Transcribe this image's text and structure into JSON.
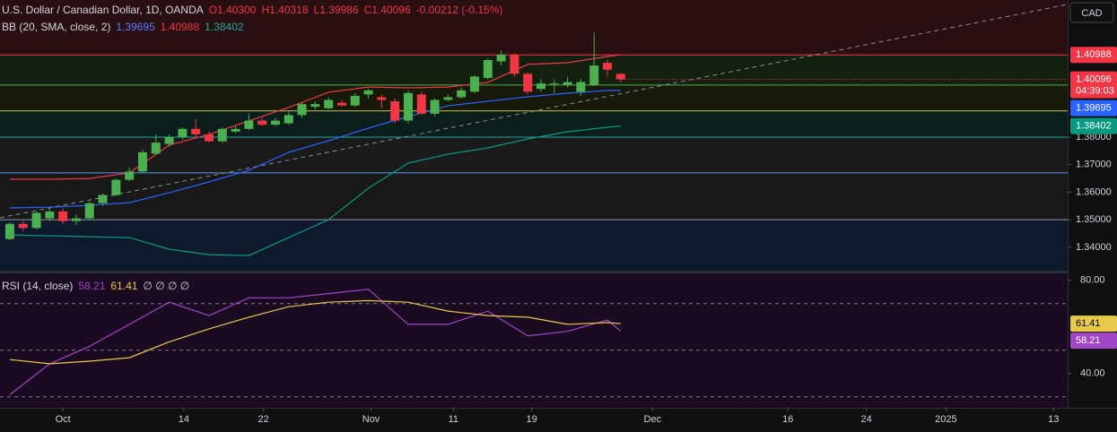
{
  "header": {
    "title": "U.S. Dollar / Canadian Dollar, 1D, OANDA",
    "ohlc": [
      "O1.40300",
      "H1.40318",
      "L1.39986",
      "C1.40096"
    ],
    "change": "-0.00212 (-0.15%)"
  },
  "currency": "CAD",
  "countdown": "04:39:03",
  "chart_data": [
    {
      "type": "candlestick",
      "x": [
        0,
        1,
        2,
        3,
        4,
        5,
        6,
        7,
        8,
        9,
        10,
        11,
        12,
        13,
        14,
        15,
        16,
        17,
        18,
        19,
        20,
        21,
        22,
        23,
        24,
        25,
        26,
        27,
        28,
        29,
        30,
        31,
        32,
        33,
        34,
        35,
        36,
        37,
        38,
        39,
        40,
        41,
        42,
        43,
        44,
        45,
        46
      ],
      "open": [
        1.343,
        1.3485,
        1.347,
        1.3505,
        1.353,
        1.3495,
        1.3505,
        1.356,
        1.359,
        1.3645,
        1.3675,
        1.374,
        1.3775,
        1.38,
        1.383,
        1.381,
        1.3785,
        1.382,
        1.383,
        1.386,
        1.3845,
        1.385,
        1.388,
        1.391,
        1.3905,
        1.3925,
        1.3915,
        1.3955,
        1.3945,
        1.393,
        1.386,
        1.3955,
        1.3885,
        1.3935,
        1.3945,
        1.3965,
        1.4015,
        1.4075,
        1.41,
        1.403,
        1.3975,
        1.3995,
        1.399,
        1.3965,
        1.399,
        1.407,
        1.403
      ],
      "high": [
        1.349,
        1.3495,
        1.353,
        1.3545,
        1.354,
        1.352,
        1.3565,
        1.3595,
        1.365,
        1.369,
        1.3755,
        1.381,
        1.381,
        1.3835,
        1.3865,
        1.382,
        1.3835,
        1.384,
        1.3885,
        1.387,
        1.387,
        1.389,
        1.3925,
        1.393,
        1.3945,
        1.3935,
        1.396,
        1.3975,
        1.3955,
        1.394,
        1.397,
        1.3965,
        1.394,
        1.3955,
        1.398,
        1.4025,
        1.4085,
        1.4115,
        1.4105,
        1.4035,
        1.401,
        1.401,
        1.402,
        1.401,
        1.418,
        1.408,
        1.40318
      ],
      "low": [
        1.3425,
        1.346,
        1.3465,
        1.3495,
        1.3485,
        1.348,
        1.35,
        1.355,
        1.3585,
        1.364,
        1.367,
        1.3735,
        1.3765,
        1.379,
        1.38,
        1.378,
        1.378,
        1.3815,
        1.3825,
        1.384,
        1.384,
        1.3845,
        1.387,
        1.39,
        1.39,
        1.391,
        1.391,
        1.394,
        1.3905,
        1.385,
        1.385,
        1.388,
        1.3875,
        1.393,
        1.394,
        1.396,
        1.401,
        1.406,
        1.402,
        1.3955,
        1.3965,
        1.396,
        1.398,
        1.395,
        1.3985,
        1.402,
        1.39986
      ],
      "close": [
        1.3485,
        1.347,
        1.3525,
        1.353,
        1.3495,
        1.3505,
        1.356,
        1.359,
        1.3645,
        1.3675,
        1.3745,
        1.378,
        1.38,
        1.383,
        1.381,
        1.3785,
        1.383,
        1.383,
        1.386,
        1.3845,
        1.386,
        1.388,
        1.392,
        1.392,
        1.3935,
        1.3915,
        1.395,
        1.397,
        1.3935,
        1.386,
        1.396,
        1.3885,
        1.3935,
        1.3945,
        1.397,
        1.402,
        1.408,
        1.41,
        1.403,
        1.3965,
        1.3995,
        1.3995,
        1.4,
        1.4,
        1.406,
        1.4045,
        1.40096
      ],
      "up_color": "#4caf50",
      "down_color": "#f23645",
      "xlim": [
        -0.74,
        79.66
      ],
      "xticks": [
        {
          "value": 4,
          "label": "Oct"
        },
        {
          "value": 13.1,
          "label": "14"
        },
        {
          "value": 19.1,
          "label": "22"
        },
        {
          "value": 27.2,
          "label": "Nov"
        },
        {
          "value": 33.4,
          "label": "11"
        },
        {
          "value": 39.3,
          "label": "19"
        },
        {
          "value": 48.4,
          "label": "Dec"
        },
        {
          "value": 58.6,
          "label": "16"
        },
        {
          "value": 64.5,
          "label": "24"
        },
        {
          "value": 70.5,
          "label": "2025"
        },
        {
          "value": 78.6,
          "label": "13"
        }
      ],
      "ylim": [
        1.3315,
        1.4298
      ],
      "yticks": [
        {
          "value": 1.34,
          "label": "1.34000"
        },
        {
          "value": 1.35,
          "label": "1.35000"
        },
        {
          "value": 1.36,
          "label": "1.36000"
        },
        {
          "value": 1.37,
          "label": "1.37000"
        },
        {
          "value": 1.38,
          "label": "1.38000"
        }
      ],
      "bollinger": {
        "label": "BB (20, SMA, close, 2)",
        "x": [
          0,
          3,
          6,
          9,
          12,
          15,
          18,
          21,
          24,
          27,
          30,
          33,
          36,
          39,
          42,
          45,
          46
        ],
        "series": [
          {
            "color": "#2962ff",
            "values": [
              1.35427,
              1.35459,
              1.35524,
              1.35622,
              1.3598,
              1.36371,
              1.36795,
              1.37446,
              1.3787,
              1.38326,
              1.38749,
              1.3914,
              1.39303,
              1.39466,
              1.39596,
              1.39694,
              1.39695
            ]
          },
          {
            "color": "#f23645",
            "values": [
              1.3647,
              1.3647,
              1.365,
              1.367,
              1.3771,
              1.381,
              1.3859,
              1.3908,
              1.3963,
              1.3982,
              1.3979,
              1.3982,
              1.3999,
              1.4064,
              1.407,
              1.4093,
              1.40988
            ]
          },
          {
            "color": "#089981",
            "values": [
              1.34449,
              1.34417,
              1.34384,
              1.34352,
              1.33928,
              1.33733,
              1.337,
              1.34352,
              1.35003,
              1.36143,
              1.37055,
              1.37381,
              1.37609,
              1.37935,
              1.38195,
              1.38358,
              1.38402
            ]
          }
        ]
      },
      "levels": [
        1.40988,
        1.3989,
        1.3895,
        1.38,
        1.367,
        1.35
      ],
      "level_colors": [
        "#f23645",
        "#4caf50",
        "#c8c84a",
        "#26a69a",
        "#5b9cf6",
        "#9598a1"
      ],
      "zone_colors": [
        "#2a0f12",
        "#13200f",
        "#17190b",
        "#0b1e1c",
        "#1a1a1a",
        "#181818",
        "#0e1a2c"
      ],
      "trendline": {
        "x": [
          -0.74,
          79.66
        ],
        "values": [
          1.3507,
          1.4282
        ],
        "color": "#8a8e99"
      }
    },
    {
      "type": "line",
      "title": "RSI (14, close)",
      "extra": "∅ ∅ ∅ ∅",
      "x": [
        0,
        3,
        6,
        9,
        12,
        15,
        18,
        21,
        24,
        27,
        30,
        33,
        36,
        39,
        42,
        45,
        46
      ],
      "series": [
        {
          "color": "#a245c7",
          "values": [
            30.9,
            44.2,
            51.7,
            61.1,
            70.6,
            64.9,
            72.5,
            72.5,
            74.3,
            76.2,
            61.1,
            61.1,
            66.8,
            56.2,
            58.1,
            63.0,
            58.21
          ]
        },
        {
          "color": "#e8c94a",
          "values": [
            46.0,
            44.2,
            45.3,
            46.8,
            53.6,
            59.2,
            64.2,
            68.7,
            70.6,
            71.3,
            70.6,
            66.8,
            64.9,
            64.2,
            61.1,
            61.9,
            61.41
          ]
        }
      ],
      "ylim": [
        25.3,
        83
      ],
      "yticks": [
        {
          "value": 80,
          "label": "80.00"
        },
        {
          "value": 40,
          "label": "40.00"
        }
      ],
      "levels": [
        70,
        50,
        30
      ],
      "background": "#1a0b22"
    }
  ]
}
